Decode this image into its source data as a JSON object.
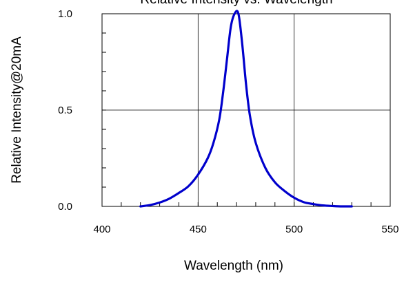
{
  "chart_data": {
    "type": "line",
    "title": "Relative Intensity vs. Wavelength",
    "xlabel": "Wavelength (nm)",
    "ylabel": "Relative Intensity@20mA",
    "xlim": [
      400,
      550
    ],
    "ylim": [
      0.0,
      1.0
    ],
    "x_ticks": [
      400,
      450,
      500,
      550
    ],
    "x_tick_labels": [
      "400",
      "450",
      "500",
      "550"
    ],
    "y_ticks": [
      0.0,
      0.5,
      1.0
    ],
    "y_tick_labels": [
      "0.0",
      "0.5",
      "1.0"
    ],
    "grid": true,
    "line_color": "#0000cc",
    "series": [
      {
        "x": [
          420,
          425,
          430,
          435,
          440,
          445,
          450,
          455,
          458,
          461,
          463,
          465,
          467,
          469,
          471,
          473,
          475,
          477,
          480,
          485,
          490,
          495,
          500,
          505,
          510,
          515,
          520,
          525,
          530
        ],
        "y": [
          0.0,
          0.007,
          0.02,
          0.04,
          0.07,
          0.105,
          0.165,
          0.25,
          0.33,
          0.45,
          0.59,
          0.76,
          0.93,
          1.0,
          1.0,
          0.84,
          0.63,
          0.47,
          0.33,
          0.2,
          0.125,
          0.08,
          0.045,
          0.022,
          0.012,
          0.005,
          0.002,
          0.0,
          0.0
        ]
      }
    ]
  }
}
